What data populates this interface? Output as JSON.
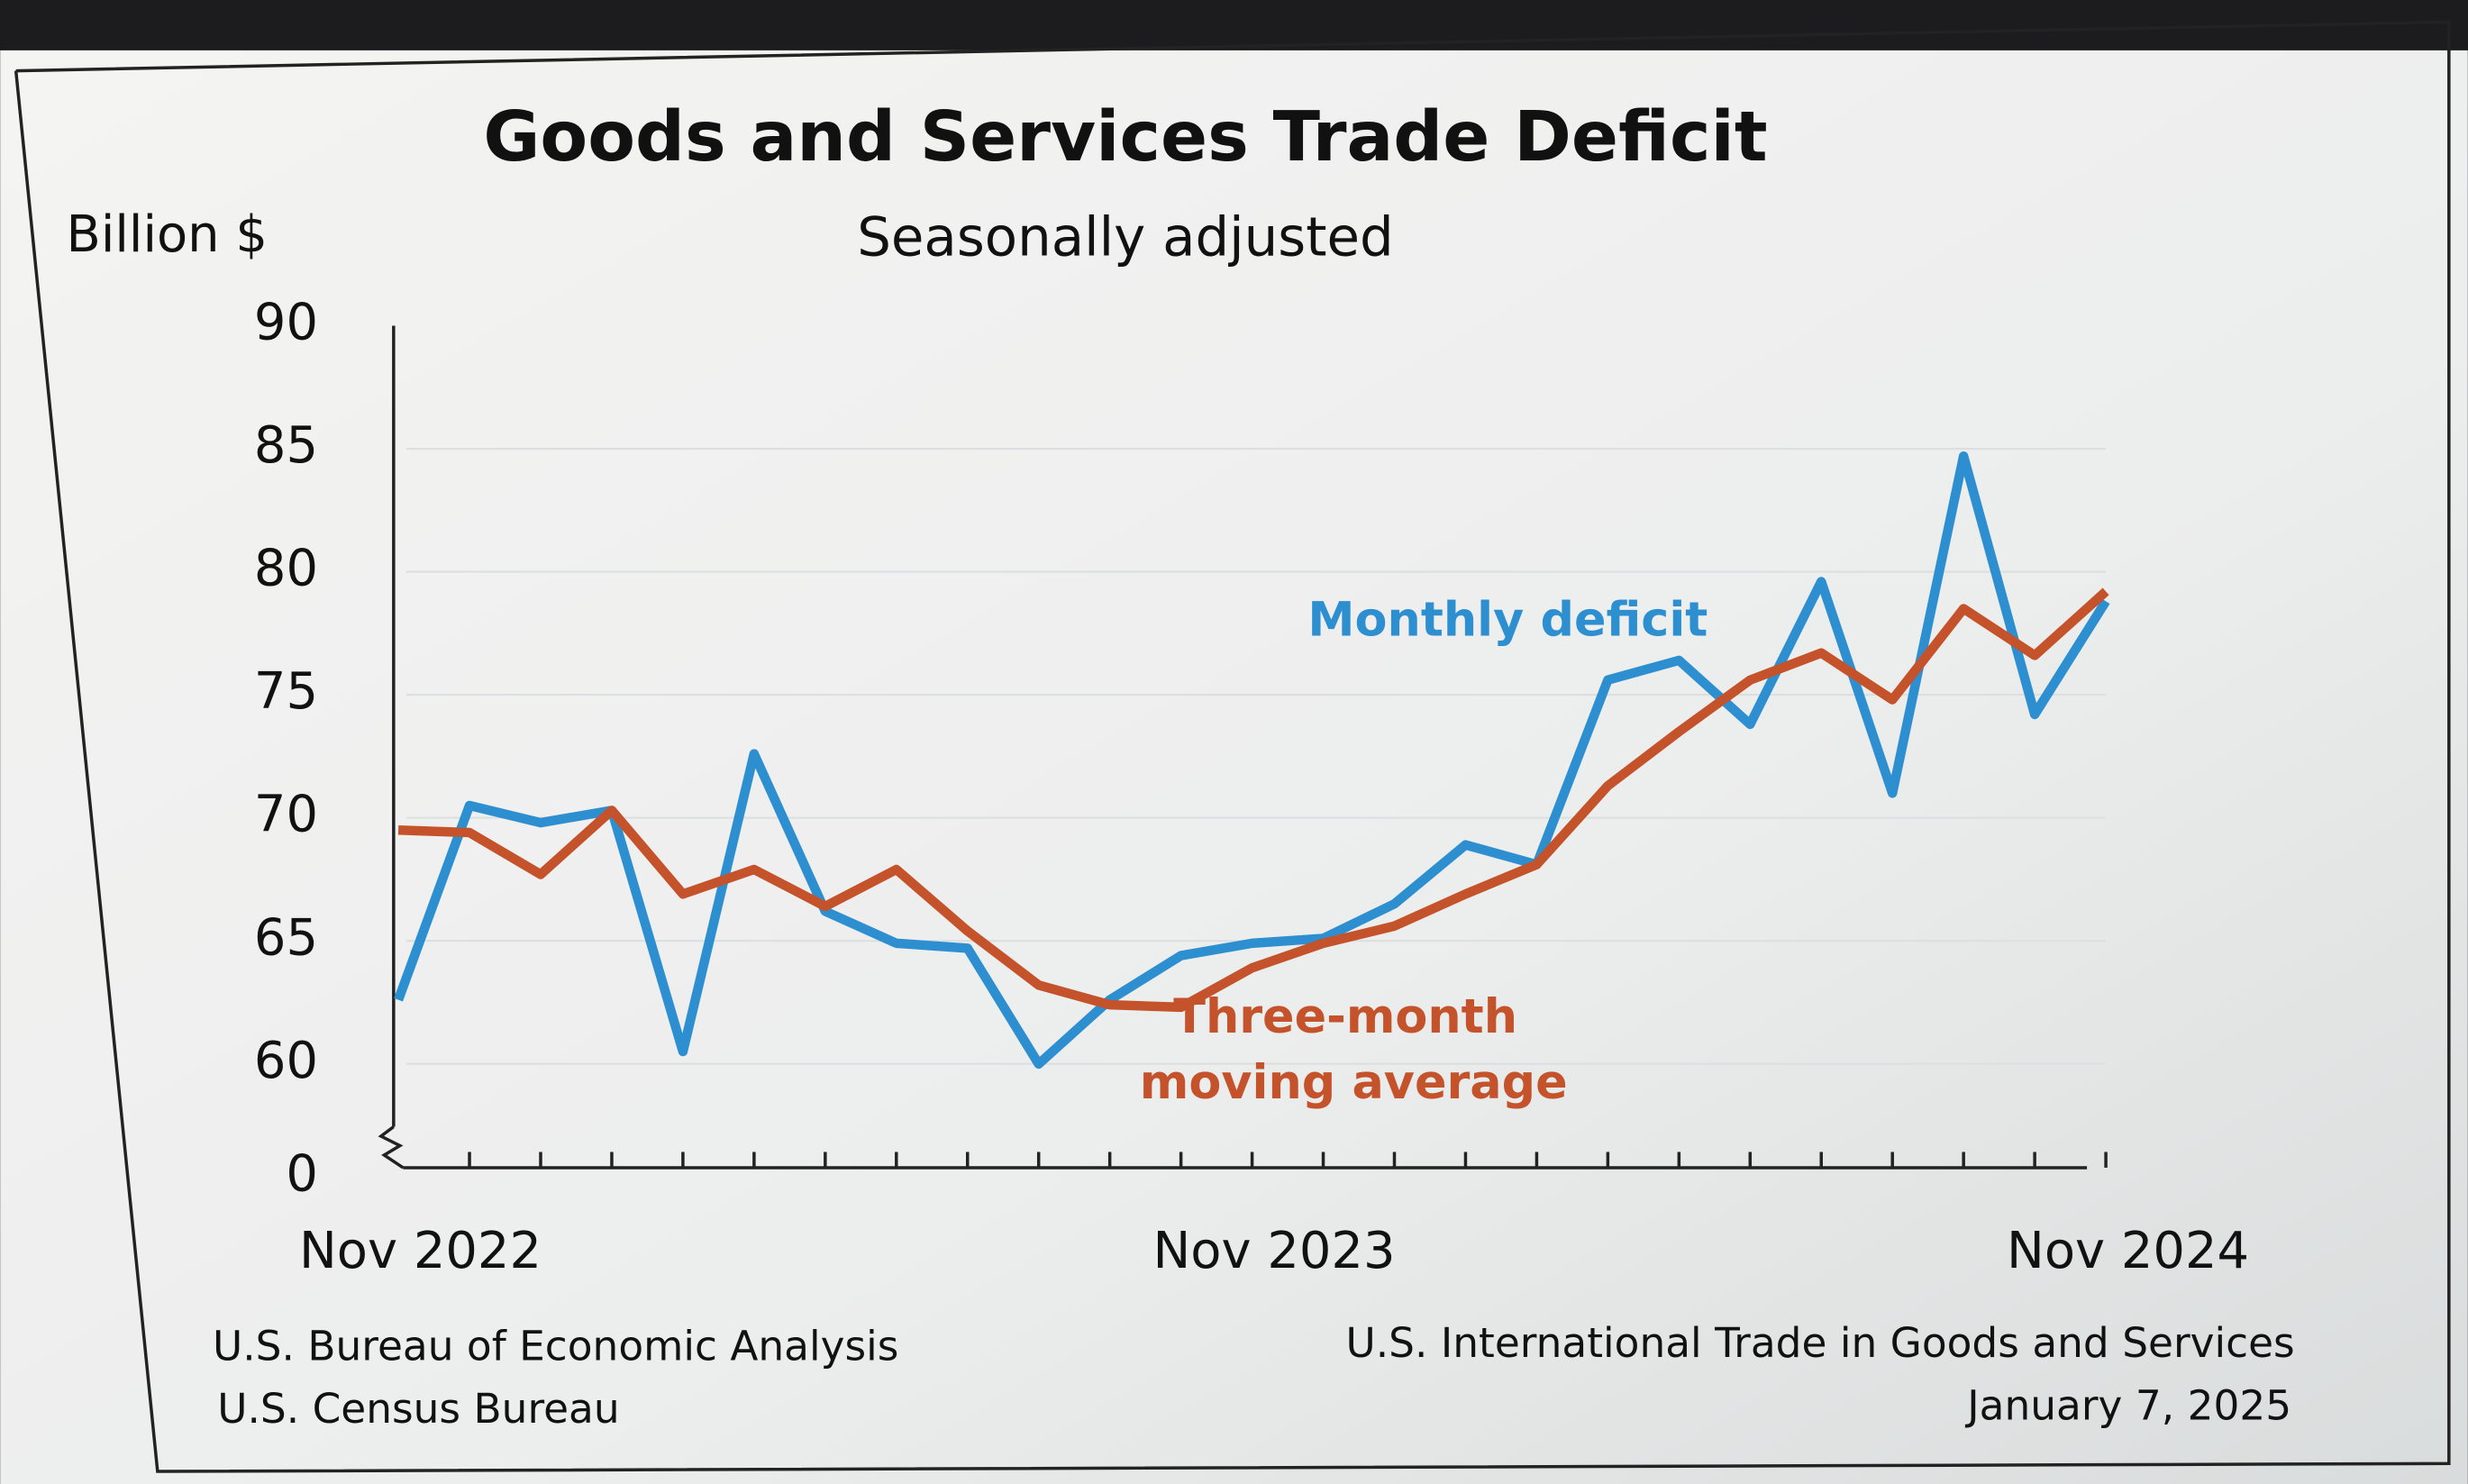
{
  "chart_data": {
    "type": "line",
    "title": "Goods and Services Trade Deficit",
    "subtitle": "Seasonally adjusted",
    "y_axis_label": "Billion $",
    "categories": [
      "Nov 2022",
      null,
      null,
      null,
      null,
      null,
      null,
      null,
      null,
      null,
      null,
      null,
      "Nov 2023",
      null,
      null,
      null,
      null,
      null,
      null,
      null,
      null,
      null,
      null,
      null,
      "Nov 2024"
    ],
    "series": [
      {
        "name": "Monthly deficit",
        "color": "#2d8fcf",
        "values": [
          62.6,
          70.5,
          69.8,
          70.3,
          60.5,
          72.6,
          66.2,
          64.9,
          64.7,
          59.9,
          62.6,
          64.4,
          64.9,
          65.1,
          66.5,
          68.9,
          68.1,
          75.6,
          76.4,
          73.8,
          79.6,
          71.0,
          84.7,
          74.2,
          78.8
        ]
      },
      {
        "name": "Three-month moving average",
        "color": "#c4522a",
        "values": [
          69.5,
          69.4,
          67.7,
          70.3,
          66.9,
          67.9,
          66.4,
          67.9,
          65.4,
          63.2,
          62.4,
          62.3,
          63.9,
          64.9,
          65.6,
          66.9,
          68.1,
          71.3,
          73.5,
          75.6,
          76.7,
          74.8,
          78.5,
          76.6,
          79.2
        ]
      }
    ],
    "ylim": [
      0,
      90
    ],
    "y_break": [
      0,
      60
    ],
    "yticks": [
      0,
      60,
      65,
      70,
      75,
      80,
      85,
      90
    ],
    "grid": true,
    "sources_left": [
      "U.S. Bureau of Economic Analysis",
      "U.S. Census Bureau"
    ],
    "sources_right": [
      "U.S. International Trade in Goods and Services",
      "January 7, 2025"
    ]
  }
}
